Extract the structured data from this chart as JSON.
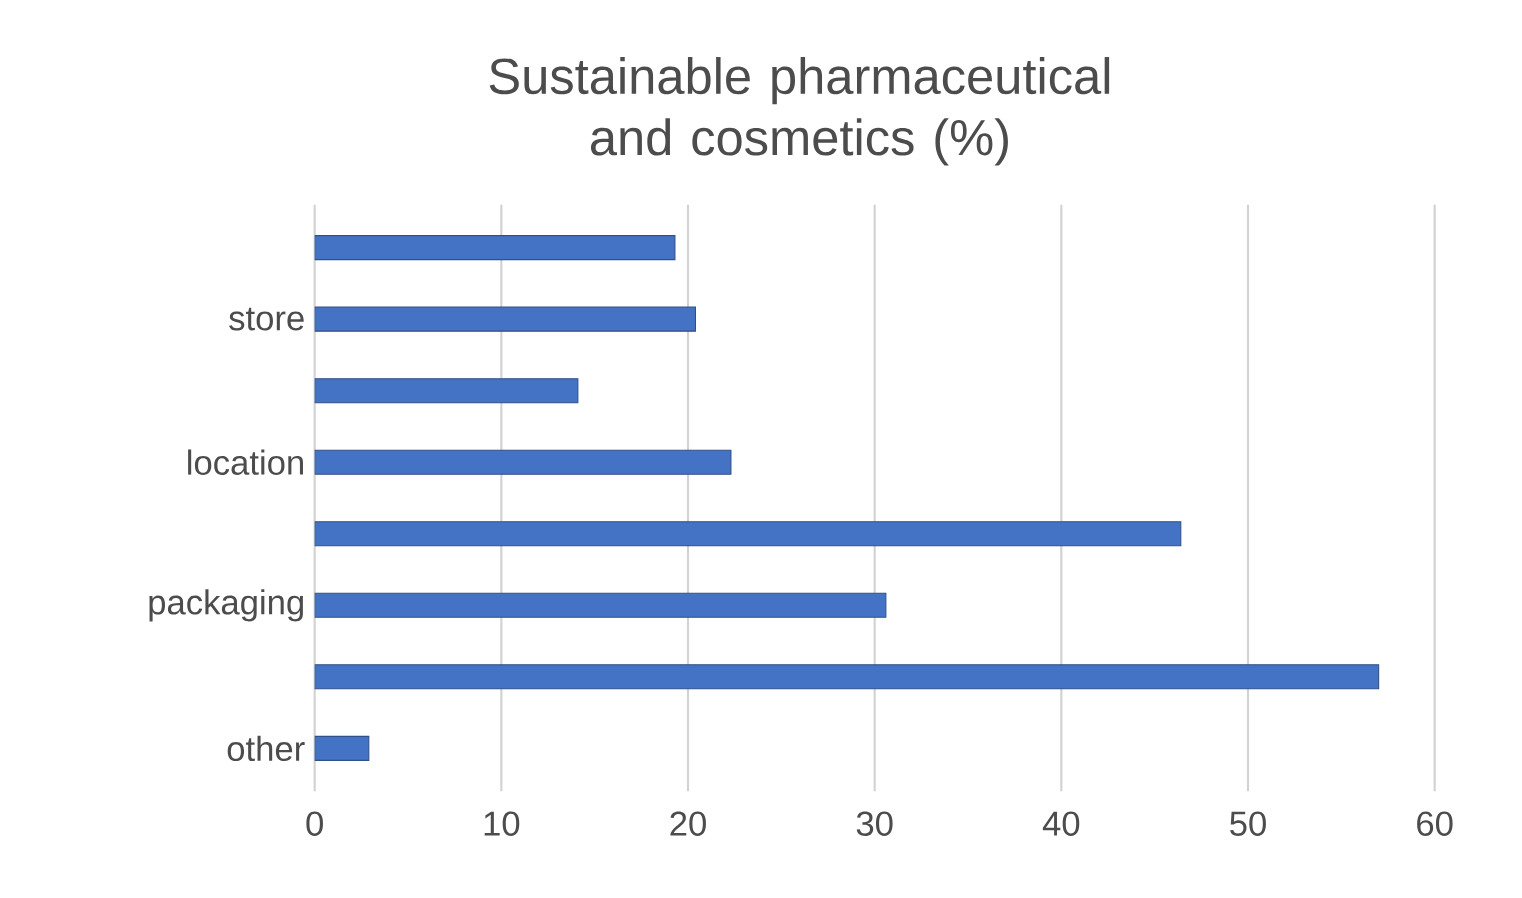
{
  "chart_data": {
    "type": "bar",
    "orientation": "horizontal",
    "title": "Sustainable pharmaceutical and cosmetics (%)",
    "categories": [
      null,
      "store",
      null,
      "location",
      null,
      "packaging",
      null,
      "other"
    ],
    "values": [
      19.3,
      20.4,
      14.1,
      22.3,
      46.4,
      30.6,
      57.0,
      2.9
    ],
    "color": "#4472c4",
    "xlim": [
      0,
      60
    ],
    "xticks": [
      0,
      10,
      20,
      30,
      40,
      50,
      60
    ],
    "grid": "x"
  }
}
